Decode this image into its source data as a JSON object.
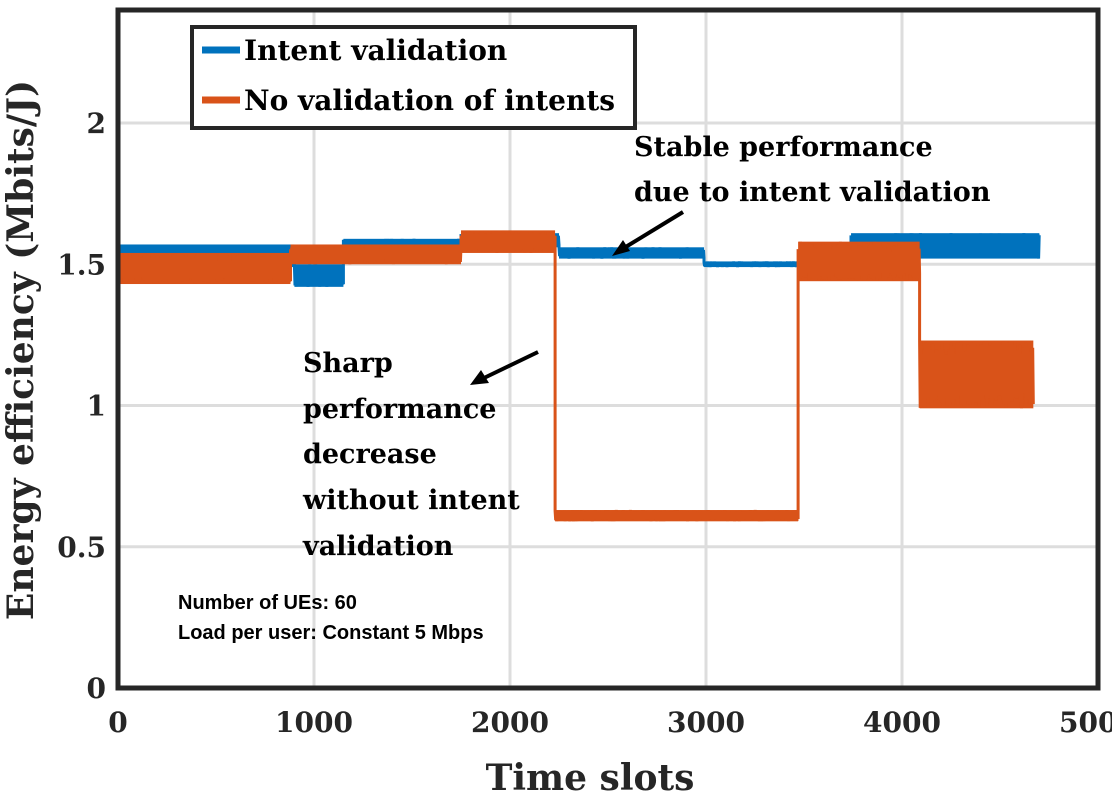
{
  "chart_data": {
    "type": "line",
    "xlabel": "Time slots",
    "ylabel": "Energy efficiency (Mbits/J)",
    "xlim": [
      0,
      5000
    ],
    "ylim": [
      0,
      2.4
    ],
    "xticks": [
      0,
      1000,
      2000,
      3000,
      4000,
      5000
    ],
    "yticks": [
      0,
      0.5,
      1,
      1.5,
      2
    ],
    "xtick_labels": [
      "0",
      "1000",
      "2000",
      "3000",
      "4000",
      "5000"
    ],
    "ytick_labels": [
      "0",
      "0.5",
      "1",
      "1.5",
      "2"
    ],
    "grid": true,
    "legend_position": "top-left",
    "series": [
      {
        "name": "Intent validation",
        "color": "#0072BD",
        "segments": [
          {
            "x_start": 0,
            "x_end": 900,
            "low": 1.49,
            "high": 1.57
          },
          {
            "x_start": 900,
            "x_end": 1150,
            "low": 1.42,
            "high": 1.5
          },
          {
            "x_start": 1150,
            "x_end": 1750,
            "low": 1.54,
            "high": 1.59
          },
          {
            "x_start": 1750,
            "x_end": 2250,
            "low": 1.56,
            "high": 1.61
          },
          {
            "x_start": 2250,
            "x_end": 2990,
            "low": 1.52,
            "high": 1.56
          },
          {
            "x_start": 2990,
            "x_end": 3740,
            "low": 1.49,
            "high": 1.51
          },
          {
            "x_start": 3740,
            "x_end": 4700,
            "low": 1.52,
            "high": 1.61
          }
        ]
      },
      {
        "name": "No validation of intents",
        "color": "#D95319",
        "segments": [
          {
            "x_start": 0,
            "x_end": 880,
            "low": 1.43,
            "high": 1.54
          },
          {
            "x_start": 880,
            "x_end": 1750,
            "low": 1.5,
            "high": 1.57
          },
          {
            "x_start": 1750,
            "x_end": 2230,
            "low": 1.54,
            "high": 1.62
          },
          {
            "x_start": 2230,
            "x_end": 3470,
            "low": 0.59,
            "high": 0.63
          },
          {
            "x_start": 3470,
            "x_end": 4090,
            "low": 1.44,
            "high": 1.58
          },
          {
            "x_start": 4090,
            "x_end": 4670,
            "low": 0.99,
            "high": 1.23
          }
        ]
      }
    ],
    "annotations": [
      {
        "lines": [
          "Stable performance",
          "due to intent validation"
        ],
        "arrow_to": {
          "x": 2600,
          "y": 1.55
        }
      },
      {
        "lines": [
          "Sharp",
          "performance",
          "decrease",
          "without intent",
          "validation"
        ],
        "arrow_to": {
          "x": 2150,
          "y": 1.08
        }
      }
    ],
    "info_box": [
      "Number of UEs: 60",
      "Load per user: Constant 5 Mbps"
    ]
  }
}
